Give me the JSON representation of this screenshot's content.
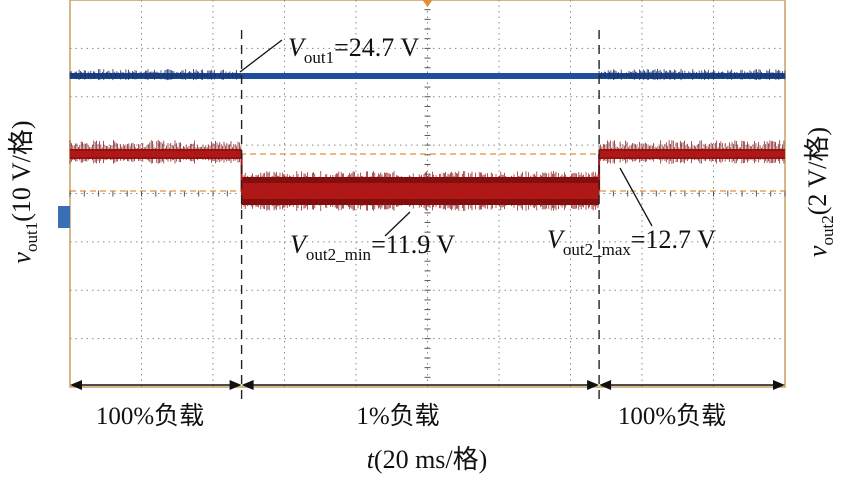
{
  "chart_data": {
    "type": "line",
    "title": "",
    "annotations": {
      "vout1": {
        "V": "V",
        "sub": "out1",
        "value": "=24.7 V"
      },
      "vout2_min": {
        "V": "V",
        "sub": "out2_min",
        "value": "=11.9 V"
      },
      "vout2_max": {
        "V": "V",
        "sub": "out2_max",
        "value": "=12.7 V"
      }
    },
    "xlabel": {
      "italic": "t",
      "rest": "(20 ms/格)"
    },
    "ylabel_left": {
      "italic": "v",
      "sub": "out1",
      "rest": "(10 V/格)"
    },
    "ylabel_right": {
      "italic": "v",
      "sub": "out2",
      "rest": "(2 V/格)"
    },
    "x_div": "20 ms",
    "x_divisions": 10,
    "y_divisions": 8,
    "load_segments": [
      {
        "label": "100%负载",
        "start_div": 0,
        "end_div": 2.4
      },
      {
        "label": "1%负载",
        "start_div": 2.4,
        "end_div": 7.4
      },
      {
        "label": "100%负载",
        "start_div": 7.4,
        "end_div": 10
      }
    ],
    "series": [
      {
        "name": "vout1",
        "color": "#1f4e9c",
        "scale": "10 V/div",
        "values_V": [
          24.7,
          24.7,
          24.7
        ],
        "noise_heavy": [
          true,
          false,
          true
        ]
      },
      {
        "name": "vout2",
        "color": "#b01717",
        "scale": "2 V/div",
        "values_V": [
          12.7,
          11.9,
          12.7
        ],
        "noise_heavy": [
          false,
          true,
          false
        ]
      }
    ]
  },
  "colors": {
    "grid": "#8a8a8a",
    "frame": "#c8a060",
    "ref": "#e0903a",
    "trace1": "#1f4e9c",
    "trace2": "#b01717",
    "trace2_dark": "#7a0c0c"
  }
}
